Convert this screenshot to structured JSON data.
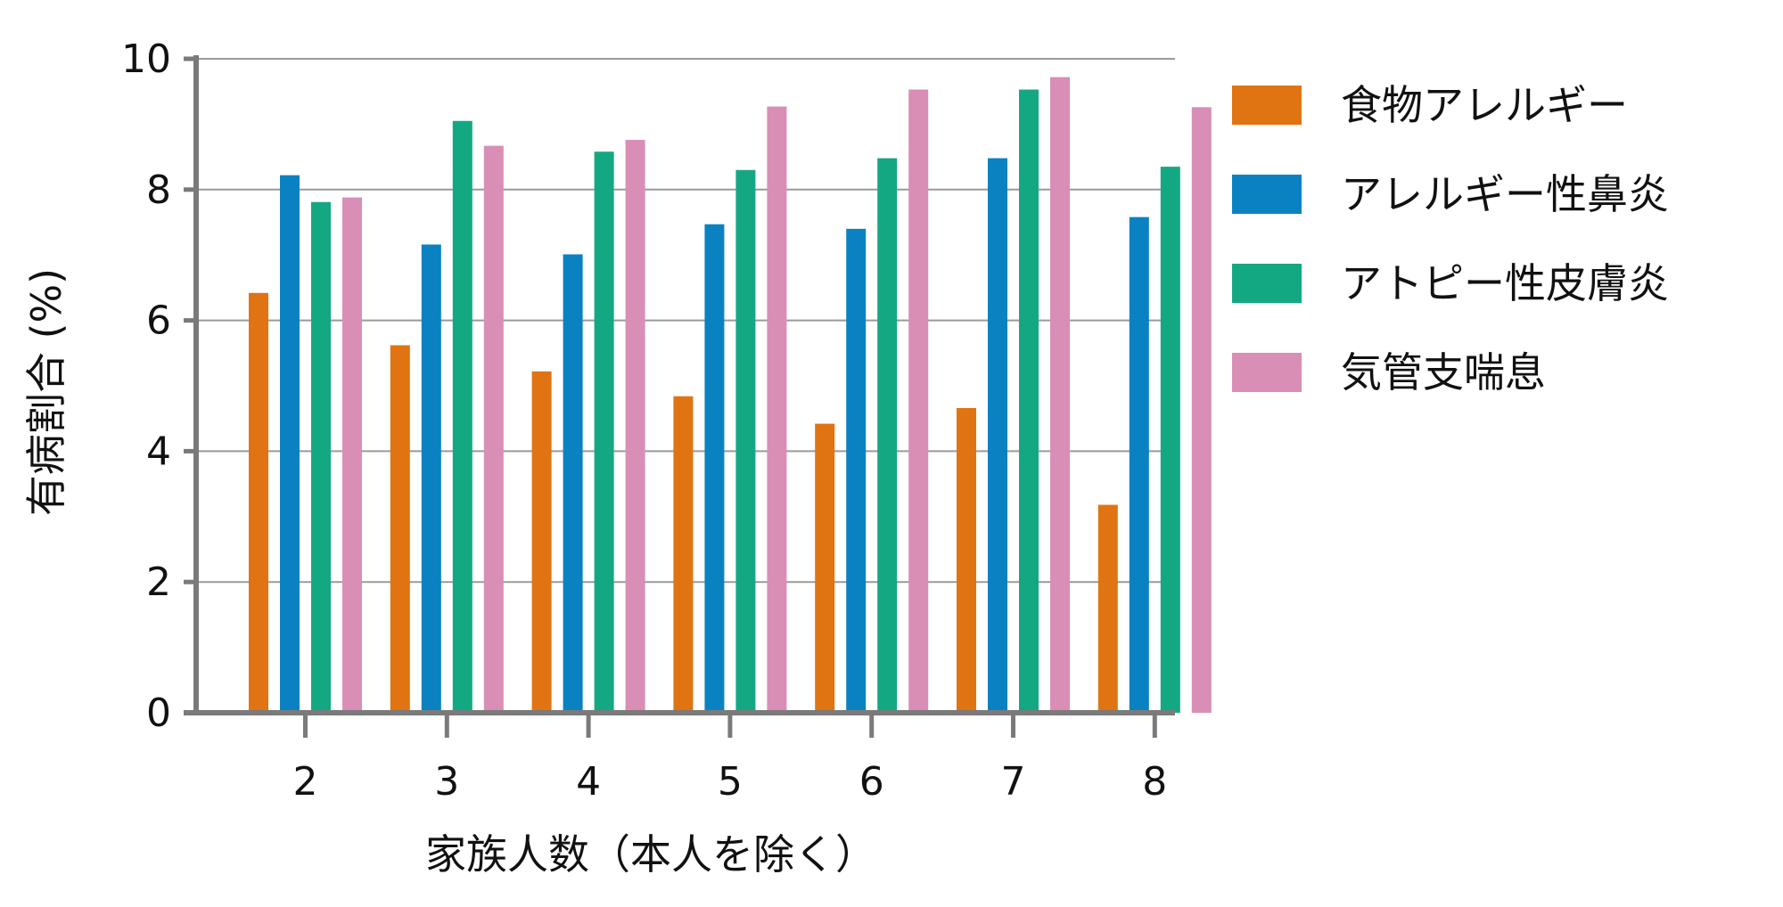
{
  "chart_data": {
    "type": "bar",
    "categories": [
      "2",
      "3",
      "4",
      "5",
      "6",
      "7",
      "8"
    ],
    "series": [
      {
        "name": "食物アレルギー",
        "color": "#E07412",
        "values": [
          6.42,
          5.62,
          5.22,
          4.84,
          4.42,
          4.66,
          3.18
        ]
      },
      {
        "name": "アレルギー性鼻炎",
        "color": "#0A82C2",
        "values": [
          8.22,
          7.16,
          7.01,
          7.47,
          7.4,
          8.48,
          7.58
        ]
      },
      {
        "name": "アトピー性皮膚炎",
        "color": "#14A882",
        "values": [
          7.81,
          9.05,
          8.58,
          8.3,
          8.48,
          9.53,
          8.35
        ]
      },
      {
        "name": "気管支喘息",
        "color": "#D98EB6",
        "values": [
          7.88,
          8.67,
          8.76,
          9.27,
          9.53,
          9.72,
          9.26
        ]
      }
    ],
    "xlabel": "家族人数（本人を除く）",
    "ylabel": "有病割合 (%)",
    "ylim": [
      0,
      10
    ],
    "yticks": [
      "0",
      "2",
      "4",
      "6",
      "8",
      "10"
    ],
    "grid": true,
    "legend": "right"
  }
}
